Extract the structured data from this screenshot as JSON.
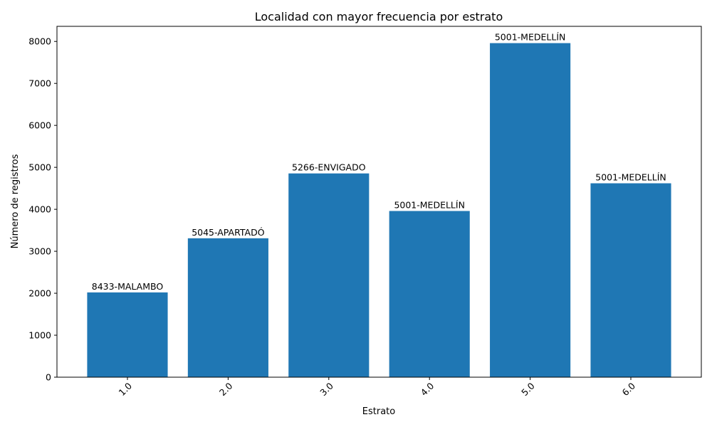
{
  "chart_data": {
    "type": "bar",
    "title": "Localidad con mayor frecuencia por estrato",
    "xlabel": "Estrato",
    "ylabel": "Número de registros",
    "categories": [
      "1.0",
      "2.0",
      "3.0",
      "4.0",
      "5.0",
      "6.0"
    ],
    "values": [
      2020,
      3310,
      4855,
      3960,
      7960,
      4620
    ],
    "bar_labels": [
      "8433-MALAMBO",
      "5045-APARTADÓ",
      "5266-ENVIGADO",
      "5001-MEDELLÍN",
      "5001-MEDELLÍN",
      "5001-MEDELLÍN"
    ],
    "yticks": [
      0,
      1000,
      2000,
      3000,
      4000,
      5000,
      6000,
      7000,
      8000
    ],
    "ylim": [
      0,
      8360
    ],
    "grid": false,
    "bar_color": "#1f77b4"
  }
}
